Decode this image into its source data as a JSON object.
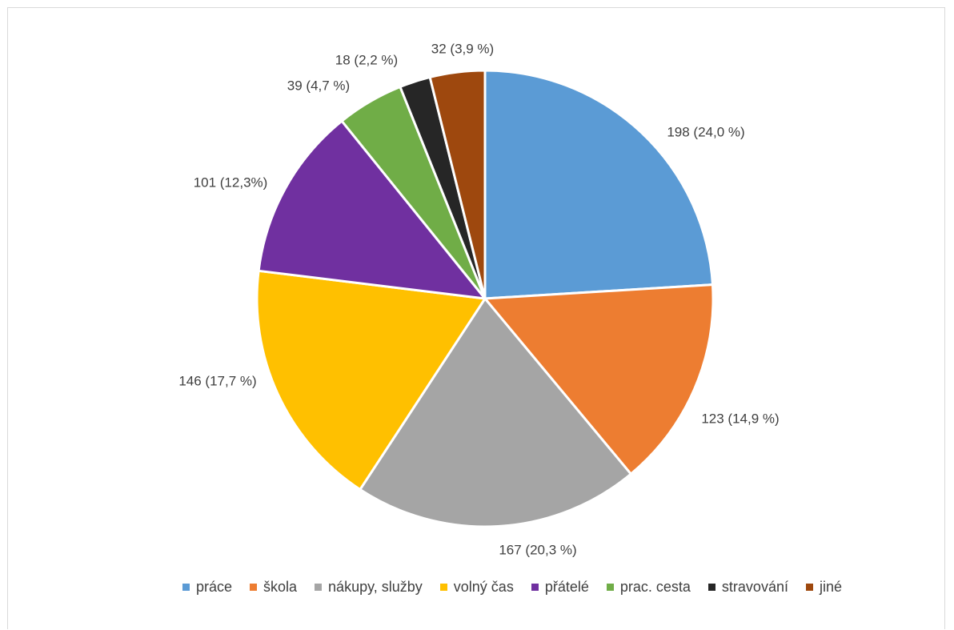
{
  "chart_data": {
    "type": "pie",
    "title": "",
    "categories": [
      "práce",
      "škola",
      "nákupy, služby",
      "volný čas",
      "přátelé",
      "prac. cesta",
      "stravování",
      "jiné"
    ],
    "values": [
      198,
      123,
      167,
      146,
      101,
      39,
      18,
      32
    ],
    "percent_labels": [
      "24,0 %",
      "14,9 %",
      "20,3 %",
      "17,7 %",
      "12,3%",
      "4,7 %",
      "2,2 %",
      "3,9 %"
    ],
    "data_labels": [
      "198 (24,0 %)",
      "123 (14,9 %)",
      "167 (20,3 %)",
      "146 (17,7 %)",
      "101 (12,3%)",
      "39 (4,7 %)",
      "18 (2,2 %)",
      "32 (3,9 %)"
    ],
    "colors": [
      "#5b9bd5",
      "#ed7d31",
      "#a5a5a5",
      "#ffc000",
      "#7030a0",
      "#70ad47",
      "#262626",
      "#9e480e"
    ],
    "start": "12 o'clock",
    "direction": "clockwise",
    "legend_position": "bottom"
  }
}
